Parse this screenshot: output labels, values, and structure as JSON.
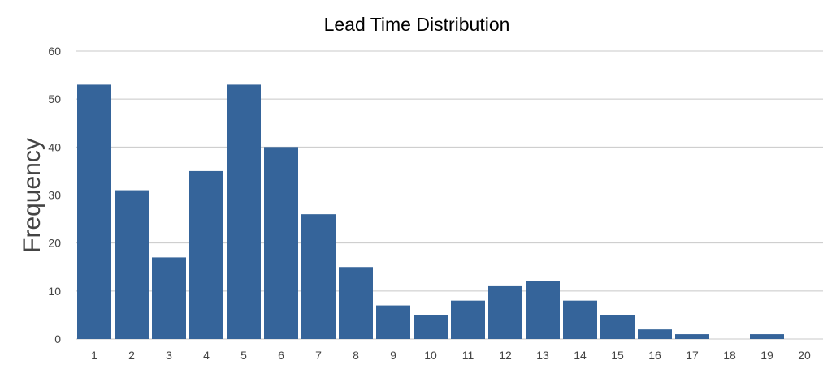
{
  "chart_data": {
    "type": "bar",
    "title": "Lead Time Distribution",
    "xlabel": "",
    "ylabel": "Frequency",
    "ylim": [
      0,
      60
    ],
    "yticks": [
      "0",
      "10",
      "20",
      "30",
      "40",
      "50",
      "60"
    ],
    "categories": [
      "1",
      "2",
      "3",
      "4",
      "5",
      "6",
      "7",
      "8",
      "9",
      "10",
      "11",
      "12",
      "13",
      "14",
      "15",
      "16",
      "17",
      "18",
      "19",
      "20"
    ],
    "values": [
      53,
      31,
      17,
      35,
      53,
      40,
      26,
      15,
      7,
      5,
      8,
      11,
      12,
      8,
      5,
      2,
      1,
      0,
      1,
      0
    ],
    "grid": true,
    "legend": "none",
    "colors": {
      "bar": "#35649A",
      "grid": "#C8C8C8",
      "axis": "#C8C8C8"
    }
  }
}
